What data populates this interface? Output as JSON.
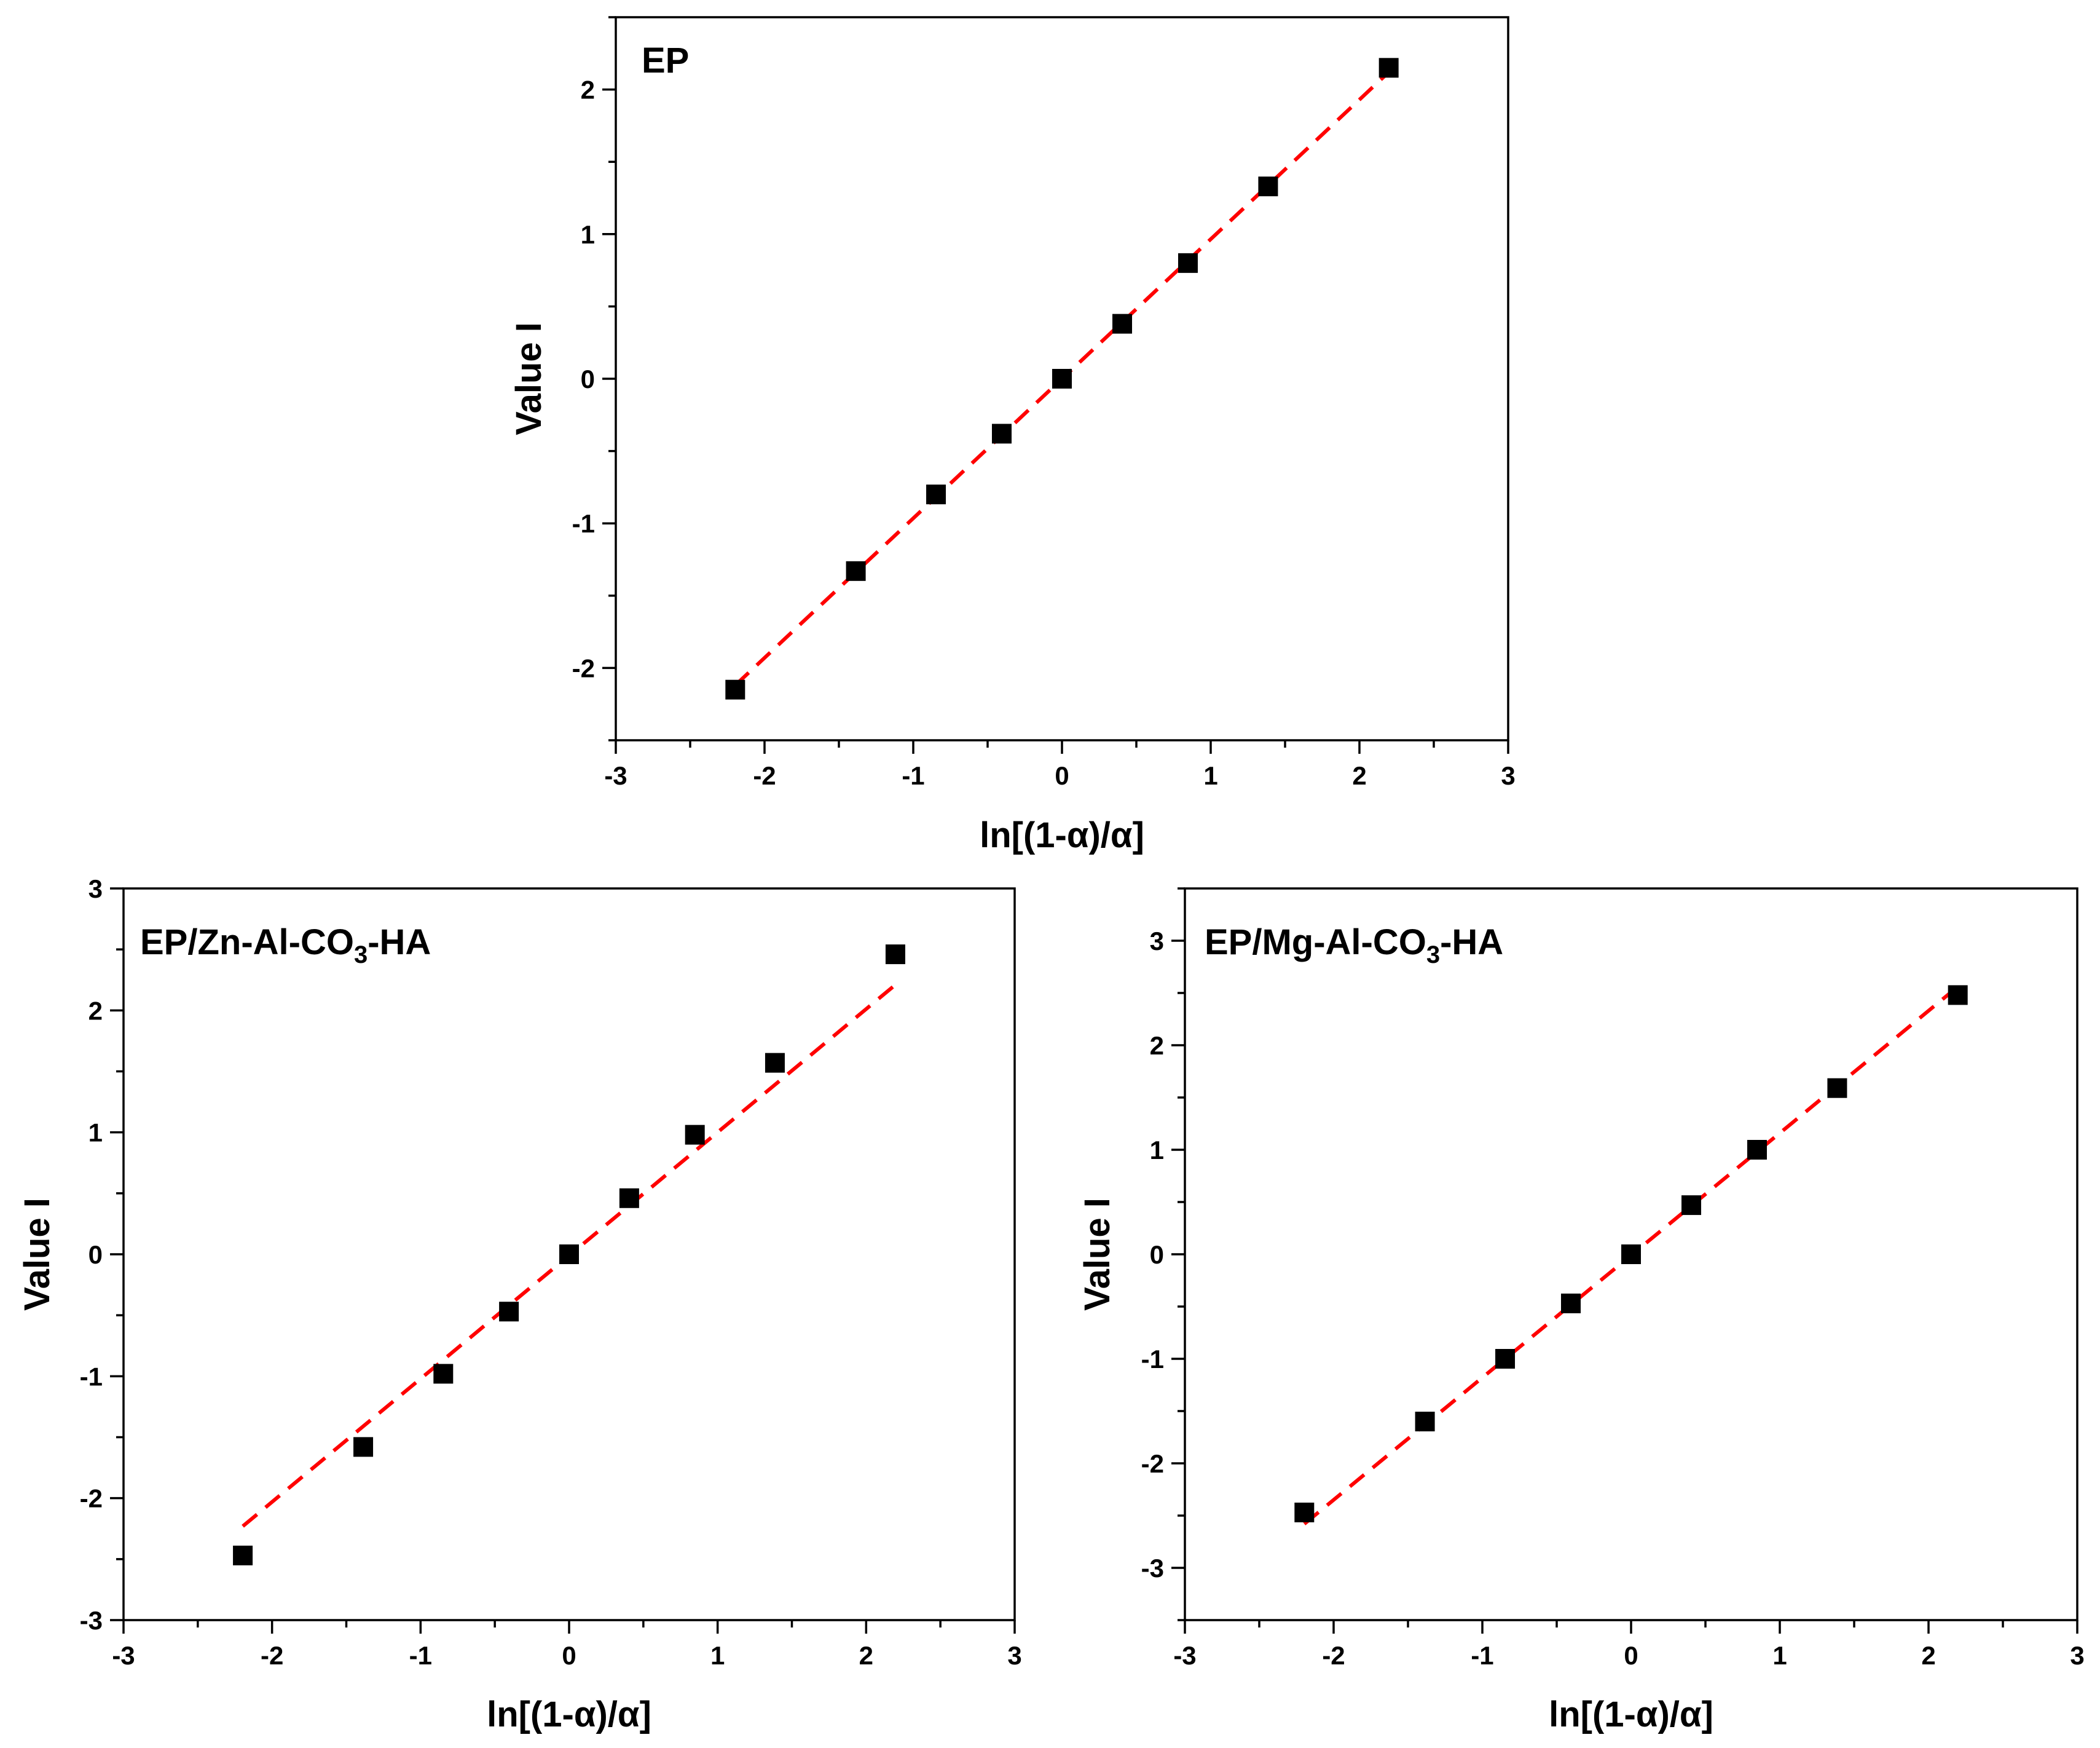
{
  "colors": {
    "marker": "#000000",
    "fit_line": "#ff0000",
    "axes": "#000000"
  },
  "chart_data": [
    {
      "type": "scatter",
      "title": "EP",
      "xlabel": "ln[(1-α)/α]",
      "ylabel": "Value I",
      "xlim": [
        -3,
        3
      ],
      "ylim": [
        -2.5,
        2.5
      ],
      "xticks": [
        "-3",
        "-2",
        "-1",
        "0",
        "1",
        "2",
        "3"
      ],
      "yticks": [
        "-2",
        "-1",
        "0",
        "1",
        "2"
      ],
      "series": [
        {
          "name": "data",
          "marker": "square",
          "x": [
            -2.197,
            -1.386,
            -0.847,
            -0.405,
            0,
            0.405,
            0.847,
            1.386,
            2.197
          ],
          "y": [
            -2.15,
            -1.33,
            -0.8,
            -0.38,
            0,
            0.38,
            0.8,
            1.33,
            2.15
          ]
        },
        {
          "name": "linear fit",
          "style": "dashed",
          "x": [
            -2.197,
            2.197
          ],
          "y": [
            -2.12,
            2.12
          ]
        }
      ]
    },
    {
      "type": "scatter",
      "title": "EP/Zn-Al-CO3-HA",
      "title_parts": {
        "prefix": "EP/Zn-Al-CO",
        "sub": "3",
        "suffix": "-HA"
      },
      "xlabel": "ln[(1-α)/α]",
      "ylabel": "Value I",
      "xlim": [
        -3,
        3
      ],
      "ylim": [
        -3,
        3
      ],
      "xticks": [
        "-3",
        "-2",
        "-1",
        "0",
        "1",
        "2",
        "3"
      ],
      "yticks": [
        "-3",
        "-2",
        "-1",
        "0",
        "1",
        "2",
        "3"
      ],
      "series": [
        {
          "name": "data",
          "marker": "square",
          "x": [
            -2.197,
            -1.386,
            -0.847,
            -0.405,
            0,
            0.405,
            0.847,
            1.386,
            2.197
          ],
          "y": [
            -2.47,
            -1.58,
            -0.98,
            -0.47,
            0,
            0.46,
            0.98,
            1.57,
            2.46
          ]
        },
        {
          "name": "linear fit",
          "style": "dashed",
          "x": [
            -2.197,
            2.197
          ],
          "y": [
            -2.23,
            2.21
          ]
        }
      ]
    },
    {
      "type": "scatter",
      "title": "EP/Mg-Al-CO3-HA",
      "title_parts": {
        "prefix": "EP/Mg-Al-CO",
        "sub": "3",
        "suffix": "-HA"
      },
      "xlabel": "ln[(1-α)/α]",
      "ylabel": "Value I",
      "xlim": [
        -3,
        3
      ],
      "ylim": [
        -3.5,
        3.5
      ],
      "xticks": [
        "-3",
        "-2",
        "-1",
        "0",
        "1",
        "2",
        "3"
      ],
      "yticks": [
        "-3",
        "-2",
        "-1",
        "0",
        "1",
        "2",
        "3"
      ],
      "series": [
        {
          "name": "data",
          "marker": "square",
          "x": [
            -2.197,
            -1.386,
            -0.847,
            -0.405,
            0,
            0.405,
            0.847,
            1.386,
            2.197
          ],
          "y": [
            -2.47,
            -1.6,
            -1.0,
            -0.47,
            0,
            0.47,
            1.0,
            1.59,
            2.48
          ]
        },
        {
          "name": "linear fit",
          "style": "dashed",
          "x": [
            -2.197,
            2.197
          ],
          "y": [
            -2.58,
            2.56
          ]
        }
      ]
    }
  ]
}
